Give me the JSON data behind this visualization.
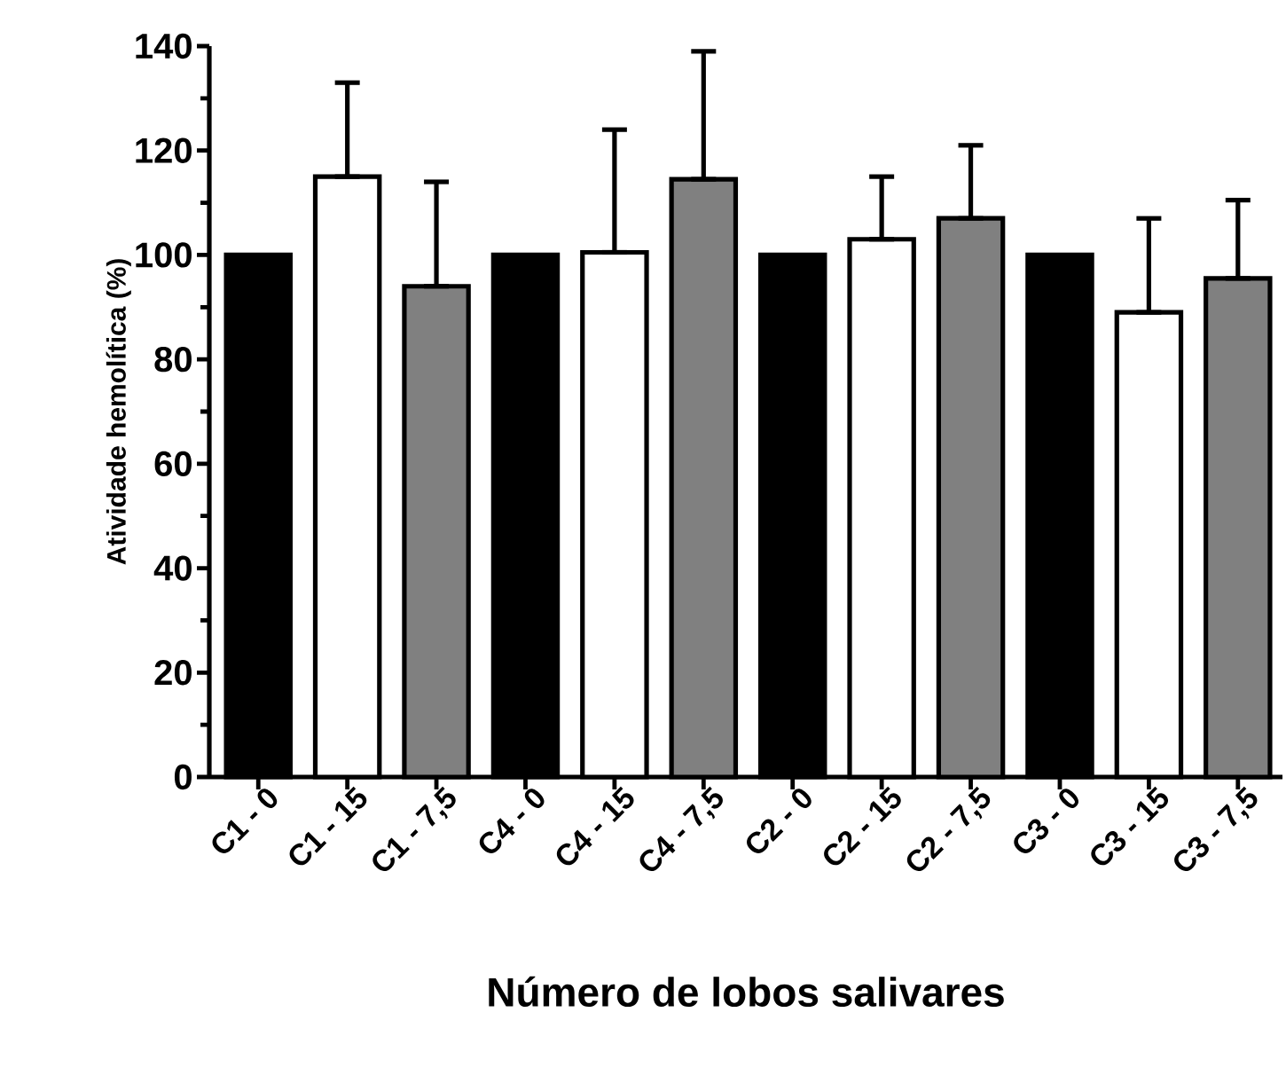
{
  "chart_data": {
    "type": "bar",
    "xlabel": "Número de lobos salivares",
    "ylabel": "Atividade hemolítica (%)",
    "categories": [
      "C1 - 0",
      "C1 - 15",
      "C1 - 7,5",
      "C4 - 0",
      "C4 - 15",
      "C4 - 7,5",
      "C2 - 0",
      "C2 - 15",
      "C2 - 7,5",
      "C3 - 0",
      "C3 - 15",
      "C3 - 7,5"
    ],
    "series": [
      {
        "color": "#000000",
        "values": [
          100,
          null,
          null,
          100,
          null,
          null,
          100,
          null,
          null,
          100,
          null,
          null
        ]
      },
      {
        "color": "#ffffff",
        "values": [
          null,
          115,
          null,
          null,
          100.5,
          null,
          null,
          103,
          null,
          null,
          89,
          null
        ],
        "errors": [
          null,
          [
            115,
            133
          ],
          null,
          null,
          [
            100.5,
            124
          ],
          null,
          null,
          [
            103,
            115
          ],
          null,
          null,
          [
            89,
            107
          ],
          null
        ]
      },
      {
        "color": "#808080",
        "values": [
          null,
          null,
          94,
          null,
          null,
          114.5,
          null,
          null,
          107,
          null,
          null,
          95.5
        ],
        "errors": [
          null,
          null,
          [
            94,
            114
          ],
          null,
          null,
          [
            114.5,
            139
          ],
          null,
          null,
          [
            107,
            121
          ],
          null,
          null,
          [
            95.5,
            110.5
          ]
        ]
      }
    ],
    "ylim": [
      0,
      140
    ],
    "yticks": [
      0,
      20,
      40,
      60,
      80,
      100,
      120,
      140
    ],
    "grid": false
  }
}
